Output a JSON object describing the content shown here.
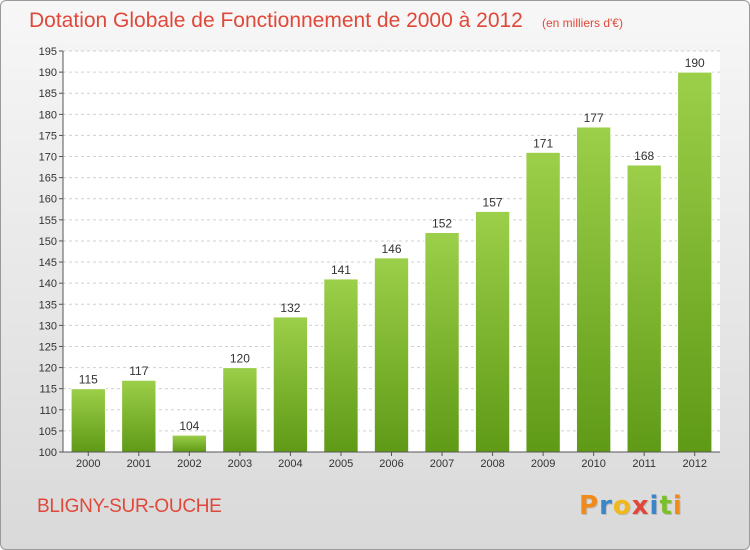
{
  "chart_data": {
    "type": "bar",
    "title": "Dotation Globale de Fonctionnement de 2000 à 2012",
    "subtitle": "(en milliers d'€)",
    "categories": [
      "2000",
      "2001",
      "2002",
      "2003",
      "2004",
      "2005",
      "2006",
      "2007",
      "2008",
      "2009",
      "2010",
      "2011",
      "2012"
    ],
    "values": [
      115,
      117,
      104,
      120,
      132,
      141,
      146,
      152,
      157,
      171,
      177,
      168,
      190
    ],
    "ylim": [
      100,
      195
    ],
    "yticks": [
      100,
      105,
      110,
      115,
      120,
      125,
      130,
      135,
      140,
      145,
      150,
      155,
      160,
      165,
      170,
      175,
      180,
      185,
      190,
      195
    ],
    "grid": true,
    "bar_color_top": "#9ccf4a",
    "bar_color_bottom": "#5f9a16",
    "xlabel": "",
    "ylabel": ""
  },
  "footer": {
    "town": "BLIGNY-SUR-OUCHE",
    "logo_letters": [
      {
        "char": "P",
        "color": "#f08a1a"
      },
      {
        "char": "r",
        "color": "#3a86c8"
      },
      {
        "char": "o",
        "color": "#f0b81a"
      },
      {
        "char": "x",
        "color": "#e0483a"
      },
      {
        "char": "i",
        "color": "#3a86c8"
      },
      {
        "char": "t",
        "color": "#7bbf2a"
      },
      {
        "char": "i",
        "color": "#f08a1a"
      }
    ]
  }
}
